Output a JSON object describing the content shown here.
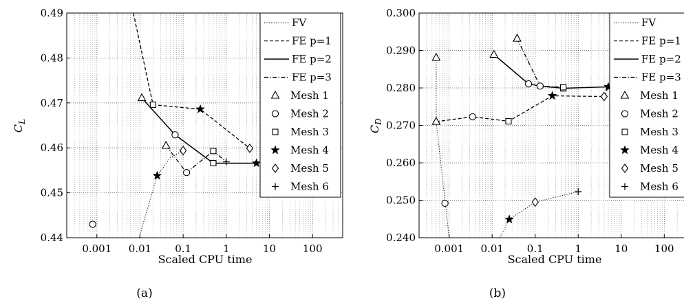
{
  "marker_legend": [
    {
      "name": "Mesh 1",
      "marker": "triangle"
    },
    {
      "name": "Mesh 2",
      "marker": "circle"
    },
    {
      "name": "Mesh 3",
      "marker": "square"
    },
    {
      "name": "Mesh 4",
      "marker": "star"
    },
    {
      "name": "Mesh 5",
      "marker": "diamond"
    },
    {
      "name": "Mesh 6",
      "marker": "plus"
    }
  ],
  "chart_data": [
    {
      "type": "line",
      "panel_label": "(a)",
      "xlabel": "Scaled CPU time",
      "ylabel": "C_L",
      "ylabel_main": "C",
      "ylabel_sub": "L",
      "x_scale": "log",
      "xlim": [
        0.0002,
        500
      ],
      "ylim": [
        0.44,
        0.49
      ],
      "xticks": [
        0.001,
        0.01,
        0.1,
        1,
        10,
        100
      ],
      "xtick_labels": [
        "0.001",
        "0.01",
        "0.1",
        "1",
        "10",
        "100"
      ],
      "yticks": [
        0.44,
        0.45,
        0.46,
        0.47,
        0.48,
        0.49
      ],
      "ytick_labels": [
        "0.44",
        "0.45",
        "0.46",
        "0.47",
        "0.48",
        "0.49"
      ],
      "grid": true,
      "legend_position": "top-right",
      "series": [
        {
          "name": "FV",
          "style": "dotted",
          "points": [
            [
              0.0095,
              0.44
            ],
            [
              0.025,
              0.4538
            ],
            [
              0.05,
              0.4578
            ],
            [
              0.1,
              0.4594
            ]
          ]
        },
        {
          "name": "FE p=1",
          "style": "dashed",
          "points": [
            [
              0.007,
              0.49
            ],
            [
              0.02,
              0.4696
            ],
            [
              0.25,
              0.4686
            ],
            [
              3.5,
              0.4599
            ]
          ]
        },
        {
          "name": "FE p=2",
          "style": "solid",
          "points": [
            [
              0.011,
              0.4711
            ],
            [
              0.065,
              0.4629
            ],
            [
              0.5,
              0.4566
            ],
            [
              5,
              0.4566
            ]
          ]
        },
        {
          "name": "FE p=3",
          "style": "dashdot",
          "points": [
            [
              0.04,
              0.4605
            ],
            [
              0.12,
              0.4545
            ],
            [
              0.5,
              0.4593
            ],
            [
              1,
              0.4569
            ]
          ]
        }
      ],
      "markers": [
        {
          "x": 0.011,
          "y": 0.4711,
          "marker": "triangle"
        },
        {
          "x": 0.04,
          "y": 0.4605,
          "marker": "triangle"
        },
        {
          "x": 0.0008,
          "y": 0.443,
          "marker": "circle"
        },
        {
          "x": 0.065,
          "y": 0.4629,
          "marker": "circle"
        },
        {
          "x": 0.12,
          "y": 0.4545,
          "marker": "circle"
        },
        {
          "x": 0.02,
          "y": 0.4696,
          "marker": "square"
        },
        {
          "x": 0.5,
          "y": 0.4593,
          "marker": "square"
        },
        {
          "x": 0.5,
          "y": 0.4566,
          "marker": "square"
        },
        {
          "x": 0.025,
          "y": 0.4538,
          "marker": "star"
        },
        {
          "x": 0.25,
          "y": 0.4686,
          "marker": "star"
        },
        {
          "x": 5,
          "y": 0.4566,
          "marker": "star"
        },
        {
          "x": 0.1,
          "y": 0.4594,
          "marker": "diamond"
        },
        {
          "x": 3.5,
          "y": 0.4599,
          "marker": "diamond"
        },
        {
          "x": 1,
          "y": 0.4569,
          "marker": "plus"
        }
      ],
      "legend": [
        "FV",
        "FE p=1",
        "FE p=2",
        "FE p=3",
        "Mesh 1",
        "Mesh 2",
        "Mesh 3",
        "Mesh 4",
        "Mesh 5",
        "Mesh 6"
      ]
    },
    {
      "type": "line",
      "panel_label": "(b)",
      "xlabel": "Scaled CPU time",
      "ylabel": "C_D",
      "ylabel_main": "C",
      "ylabel_sub": "D",
      "x_scale": "log",
      "xlim": [
        0.0002,
        500
      ],
      "ylim": [
        0.24,
        0.3
      ],
      "xticks": [
        0.001,
        0.01,
        0.1,
        1,
        10,
        100
      ],
      "xtick_labels": [
        "0.001",
        "0.01",
        "0.1",
        "1",
        "10",
        "100"
      ],
      "yticks": [
        0.24,
        0.25,
        0.26,
        0.27,
        0.28,
        0.29,
        0.3
      ],
      "ytick_labels": [
        "0.240",
        "0.250",
        "0.260",
        "0.270",
        "0.280",
        "0.290",
        "0.300"
      ],
      "grid": true,
      "legend_position": "top-right",
      "series": [
        {
          "name": "FV",
          "style": "dotted",
          "points": [
            [
              0.0005,
              0.2881
            ],
            [
              0.0005,
              0.271
            ],
            [
              0.001,
              0.24
            ],
            [
              0.015,
              0.24
            ],
            [
              0.025,
              0.2449
            ],
            [
              0.1,
              0.2495
            ],
            [
              1,
              0.2523
            ]
          ]
        },
        {
          "name": "FE p=1",
          "style": "dashed",
          "points": [
            [
              0.0005,
              0.271
            ],
            [
              0.0035,
              0.2723
            ],
            [
              0.024,
              0.2711
            ],
            [
              0.25,
              0.2779
            ],
            [
              4,
              0.2777
            ],
            [
              5,
              0.2803
            ]
          ]
        },
        {
          "name": "FE p=2",
          "style": "solid",
          "points": [
            [
              0.011,
              0.2889
            ],
            [
              0.07,
              0.2811
            ],
            [
              0.13,
              0.2805
            ],
            [
              0.45,
              0.2799
            ],
            [
              5,
              0.2803
            ]
          ]
        },
        {
          "name": "FE p=3",
          "style": "dashdot",
          "points": [
            [
              0.038,
              0.2932
            ],
            [
              0.13,
              0.2805
            ],
            [
              0.45,
              0.2802
            ]
          ]
        }
      ],
      "markers": [
        {
          "x": 0.0005,
          "y": 0.2881,
          "marker": "triangle"
        },
        {
          "x": 0.0005,
          "y": 0.271,
          "marker": "triangle"
        },
        {
          "x": 0.011,
          "y": 0.2889,
          "marker": "triangle"
        },
        {
          "x": 0.038,
          "y": 0.2932,
          "marker": "triangle"
        },
        {
          "x": 0.0008,
          "y": 0.2492,
          "marker": "circle"
        },
        {
          "x": 0.0035,
          "y": 0.2723,
          "marker": "circle"
        },
        {
          "x": 0.07,
          "y": 0.2811,
          "marker": "circle"
        },
        {
          "x": 0.13,
          "y": 0.2805,
          "marker": "circle"
        },
        {
          "x": 0.024,
          "y": 0.2711,
          "marker": "square"
        },
        {
          "x": 0.45,
          "y": 0.2799,
          "marker": "square"
        },
        {
          "x": 0.45,
          "y": 0.2802,
          "marker": "square"
        },
        {
          "x": 0.025,
          "y": 0.2449,
          "marker": "star"
        },
        {
          "x": 0.25,
          "y": 0.2779,
          "marker": "star"
        },
        {
          "x": 5,
          "y": 0.2803,
          "marker": "star"
        },
        {
          "x": 0.1,
          "y": 0.2495,
          "marker": "diamond"
        },
        {
          "x": 4,
          "y": 0.2777,
          "marker": "diamond"
        },
        {
          "x": 1,
          "y": 0.2523,
          "marker": "plus"
        }
      ],
      "legend": [
        "FV",
        "FE p=1",
        "FE p=2",
        "FE p=3",
        "Mesh 1",
        "Mesh 2",
        "Mesh 3",
        "Mesh 4",
        "Mesh 5",
        "Mesh 6"
      ]
    }
  ]
}
